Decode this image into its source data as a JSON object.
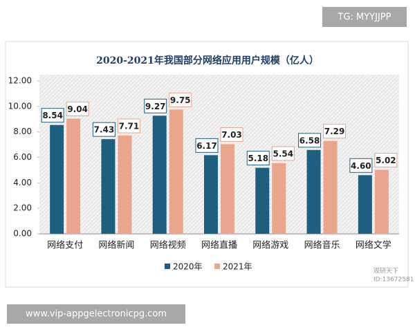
{
  "badge": "TG: MYYJJPP",
  "url": "www.vip-appgelectronicpg.com",
  "chart_data": {
    "type": "bar",
    "title": "2020-2021年我国部分网络应用用户规模（亿人）",
    "categories": [
      "网络支付",
      "网络新闻",
      "网络视频",
      "网络直播",
      "网络游戏",
      "网络音乐",
      "网络文学"
    ],
    "series": [
      {
        "name": "2020年",
        "color": "#1e5f80",
        "values": [
          8.54,
          7.43,
          9.27,
          6.17,
          5.18,
          6.58,
          4.6
        ],
        "value_labels": [
          "8.54",
          "7.43",
          "9.27",
          "6.17",
          "5.18",
          "6.58",
          "4.60"
        ]
      },
      {
        "name": "2021年",
        "color": "#e9a68c",
        "values": [
          9.04,
          7.71,
          9.75,
          7.03,
          5.54,
          7.29,
          5.02
        ],
        "value_labels": [
          "9.04",
          "7.71",
          "9.75",
          "7.03",
          "5.54",
          "7.29",
          "5.02"
        ]
      }
    ],
    "ylim": [
      0,
      12
    ],
    "yticks": [
      {
        "value": 0,
        "label": "0.00"
      },
      {
        "value": 2,
        "label": "2.00"
      },
      {
        "value": 4,
        "label": "4.00"
      },
      {
        "value": 6,
        "label": "6.00"
      },
      {
        "value": 8,
        "label": "8.00"
      },
      {
        "value": 10,
        "label": "10.00"
      },
      {
        "value": 12,
        "label": "12.00"
      }
    ],
    "watermark": [
      "观研天下",
      "ID:13672581"
    ]
  }
}
